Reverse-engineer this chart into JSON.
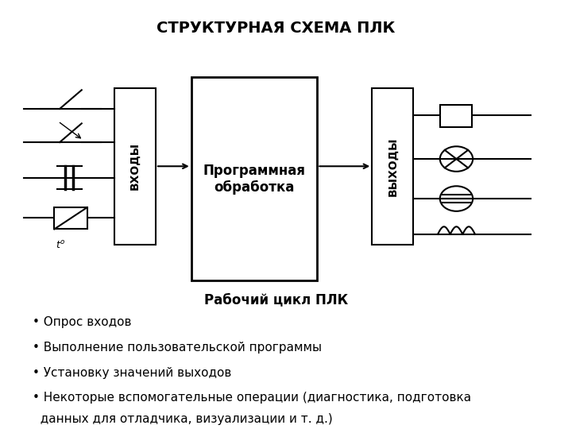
{
  "title": "СТРУКТУРНАЯ СХЕМА ПЛК",
  "title_fontsize": 14,
  "title_fontweight": "bold",
  "bg_color": "#ffffff",
  "box_color": "#000000",
  "box_fill": "#ffffff",
  "arrow_color": "#000000",
  "text_color": "#000000",
  "inputs_label": "ВХОДЫ",
  "prog_label": "Программная\nобработка",
  "outputs_label": "ВЫХОДЫ",
  "bullet_title": "Рабочий цикл ПЛК",
  "bullet_title_fontsize": 12,
  "bullet_title_fontweight": "bold",
  "bullet_items": [
    "Опрос входов",
    "Выполнение пользовательской программы",
    "Установку значений выходов",
    "Некоторые вспомогательные операции (диагностика, подготовка данных для отладчика, визуализации и т. д.)"
  ],
  "bullet_fontsize": 11
}
